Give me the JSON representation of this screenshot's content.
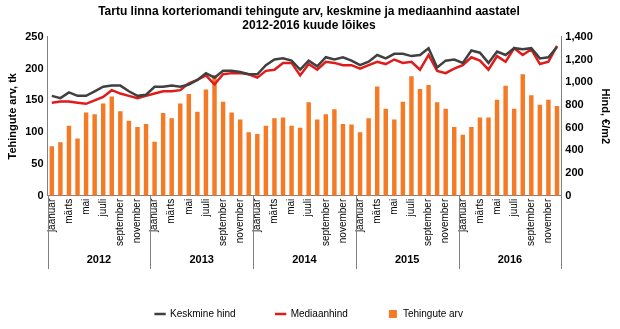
{
  "chart_data": {
    "type": "bar",
    "title": [
      "Tartu linna korteriomandi tehingute arv, keskmine ja mediaanhind aastatel",
      "2012-2016 kuude lõikes"
    ],
    "ylabel": "Tehingute arv, tk",
    "y2label": "Hind, €/m2",
    "categories": [
      "jaanuar",
      null,
      "märts",
      null,
      "mai",
      null,
      "juuli",
      null,
      "september",
      null,
      "november",
      null,
      "jaanuar",
      null,
      "märts",
      null,
      "mai",
      null,
      "juuli",
      null,
      "september",
      null,
      "november",
      null,
      "jaanuar",
      null,
      "märts",
      null,
      "mai",
      null,
      "juuli",
      null,
      "september",
      null,
      "november",
      null,
      "jaanuar",
      null,
      "märts",
      null,
      "mai",
      null,
      "juuli",
      null,
      "september",
      null,
      "november",
      null,
      "jaanuar",
      null,
      "märts",
      null,
      "mai",
      null,
      "juuli",
      null,
      "september",
      null,
      "november",
      null
    ],
    "years": [
      "2012",
      "2013",
      "2014",
      "2015",
      "2016"
    ],
    "series": [
      {
        "name": "Tehingute arv",
        "type": "bar",
        "axis": "y",
        "color": "#f47a26",
        "values": [
          78,
          84,
          110,
          90,
          131,
          128,
          145,
          156,
          133,
          118,
          108,
          113,
          85,
          130,
          122,
          145,
          160,
          132,
          167,
          190,
          148,
          131,
          120,
          100,
          97,
          110,
          122,
          123,
          110,
          107,
          147,
          120,
          128,
          136,
          113,
          112,
          100,
          122,
          172,
          137,
          120,
          148,
          188,
          168,
          174,
          147,
          137,
          108,
          96,
          108,
          123,
          123,
          151,
          173,
          137,
          191,
          158,
          143,
          151,
          141
        ]
      },
      {
        "name": "Keskmine hind",
        "type": "line",
        "axis": "y2",
        "color": "#404040",
        "values": [
          880,
          860,
          910,
          880,
          880,
          920,
          960,
          970,
          970,
          920,
          880,
          890,
          960,
          960,
          970,
          960,
          980,
          1020,
          1080,
          1040,
          1100,
          1100,
          1090,
          1070,
          1070,
          1150,
          1200,
          1210,
          1190,
          1110,
          1190,
          1140,
          1220,
          1200,
          1220,
          1190,
          1150,
          1180,
          1240,
          1210,
          1250,
          1250,
          1230,
          1240,
          1300,
          1130,
          1190,
          1200,
          1170,
          1280,
          1260,
          1170,
          1270,
          1240,
          1300,
          1290,
          1300,
          1210,
          1220,
          1310
        ]
      },
      {
        "name": "Mediaanhind",
        "type": "line",
        "axis": "y2",
        "color": "#e01b1b",
        "values": [
          820,
          830,
          830,
          820,
          810,
          840,
          870,
          930,
          900,
          880,
          860,
          880,
          900,
          920,
          920,
          930,
          990,
          1020,
          1060,
          980,
          1070,
          1080,
          1080,
          1070,
          1040,
          1100,
          1110,
          1170,
          1170,
          1060,
          1160,
          1110,
          1180,
          1170,
          1150,
          1150,
          1120,
          1150,
          1180,
          1160,
          1200,
          1170,
          1180,
          1110,
          1240,
          1100,
          1080,
          1120,
          1150,
          1220,
          1190,
          1110,
          1230,
          1180,
          1300,
          1240,
          1290,
          1160,
          1180,
          1320
        ]
      }
    ],
    "ylim": [
      0,
      250
    ],
    "yticks": [
      0,
      50,
      100,
      150,
      200,
      250
    ],
    "y2lim": [
      0,
      1400
    ],
    "y2ticks": [
      0,
      200,
      400,
      600,
      800,
      1000,
      1200,
      1400
    ],
    "grid": false,
    "legend": "bottom"
  }
}
